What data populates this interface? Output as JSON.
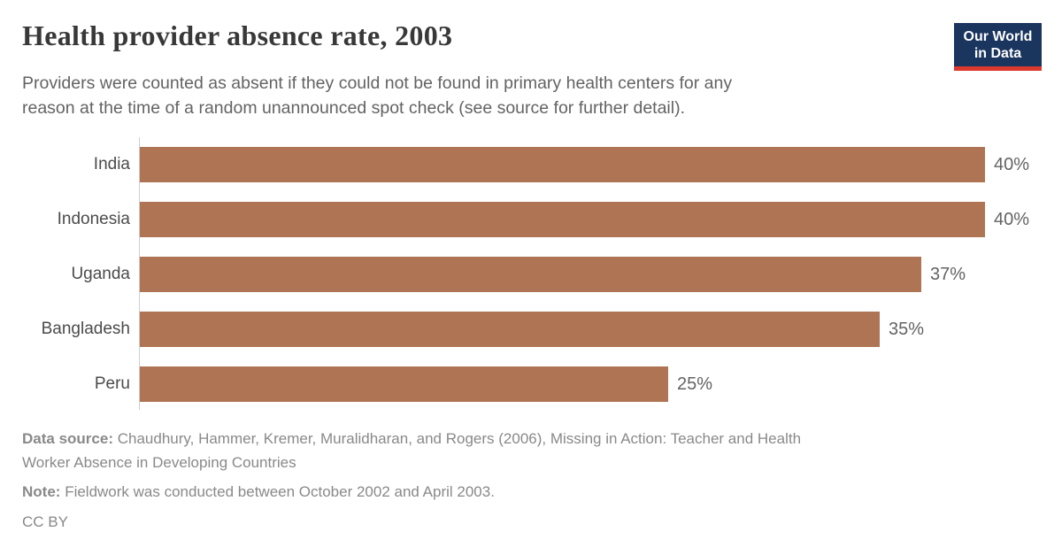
{
  "header": {
    "title": "Health provider absence rate, 2003",
    "subtitle_lines": [
      "Providers were counted as absent if they could not be found in primary health centers for any",
      "reason at the time of a random unannounced spot check (see source for further detail)."
    ]
  },
  "logo": {
    "line1": "Our World",
    "line2": "in Data",
    "background_color": "#1a355e",
    "underline_color": "#dc3a2e",
    "text_color": "#ffffff"
  },
  "chart_data": {
    "type": "bar",
    "orientation": "horizontal",
    "title": "Health provider absence rate, 2003",
    "categories": [
      "India",
      "Indonesia",
      "Uganda",
      "Bangladesh",
      "Peru"
    ],
    "values": [
      40,
      40,
      37,
      35,
      25
    ],
    "unit": "%",
    "value_labels": [
      "40%",
      "40%",
      "37%",
      "35%",
      "25%"
    ],
    "xlim": [
      0,
      40
    ],
    "grid": false,
    "legend": "none",
    "bar_color": "#af7453",
    "axis_line_color": "#cfcfcf",
    "category_label_color": "#4b4b4b",
    "value_label_color": "#636363"
  },
  "footer": {
    "data_source_label": "Data source:",
    "data_source_lines": [
      "Chaudhury, Hammer, Kremer, Muralidharan, and Rogers (2006), Missing in Action: Teacher and Health",
      "Worker Absence in Developing Countries"
    ],
    "note_label": "Note:",
    "note_text": "Fieldwork was conducted between October 2002 and April 2003.",
    "license": "CC BY"
  }
}
